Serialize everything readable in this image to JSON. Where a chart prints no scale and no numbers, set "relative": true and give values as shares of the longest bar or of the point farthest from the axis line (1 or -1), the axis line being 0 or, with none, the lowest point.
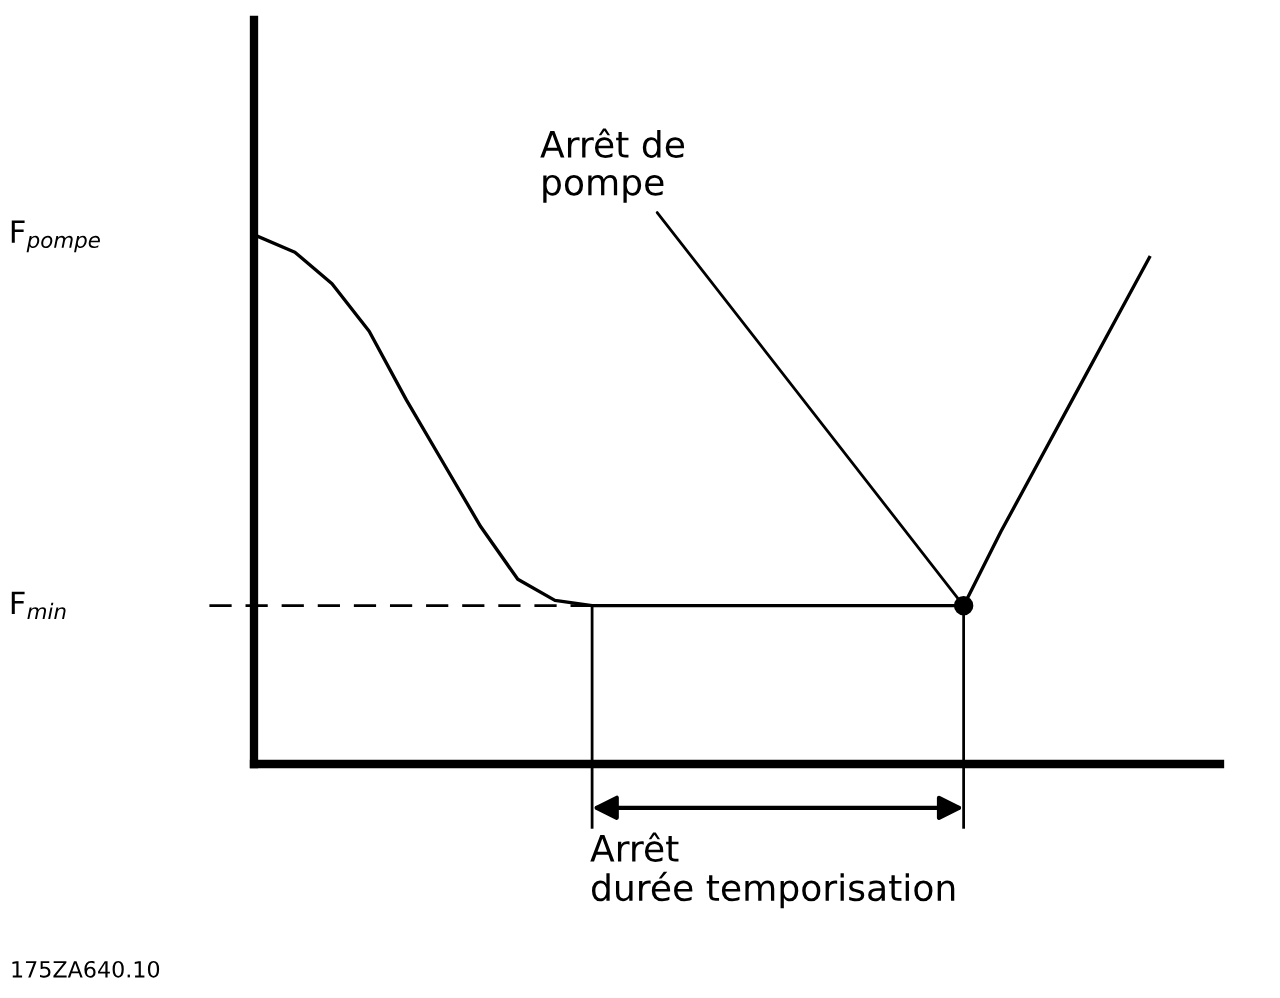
{
  "chart_data": {
    "type": "line",
    "relative": true,
    "categories": [
      null,
      null,
      null,
      null,
      null,
      null,
      null,
      null,
      null,
      null,
      null,
      null,
      null,
      null,
      null,
      null,
      null,
      null,
      null,
      null,
      null,
      null,
      null,
      null,
      null
    ],
    "series": [
      {
        "color": "#000000",
        "values": [
          1.0,
          0.97,
          0.91,
          0.82,
          0.69,
          0.57,
          0.45,
          0.35,
          0.31,
          0.3,
          0.3,
          0.3,
          0.3,
          0.3,
          0.3,
          0.3,
          0.3,
          0.3,
          0.3,
          0.3,
          0.44,
          0.57,
          0.7,
          0.83,
          0.96
        ]
      }
    ],
    "ref_lines": [
      {
        "axis": "y",
        "value": 0.3,
        "label": "F$_{min}$",
        "color": "#000000",
        "line_style": "dashed"
      }
    ],
    "annotations": [
      "F$_{pompe}$",
      "Arrêt de\npompe",
      "Arrêt\ndurée temporisation",
      "175ZA640.10"
    ],
    "grid": false,
    "marker": "none",
    "line_style": "solid"
  }
}
